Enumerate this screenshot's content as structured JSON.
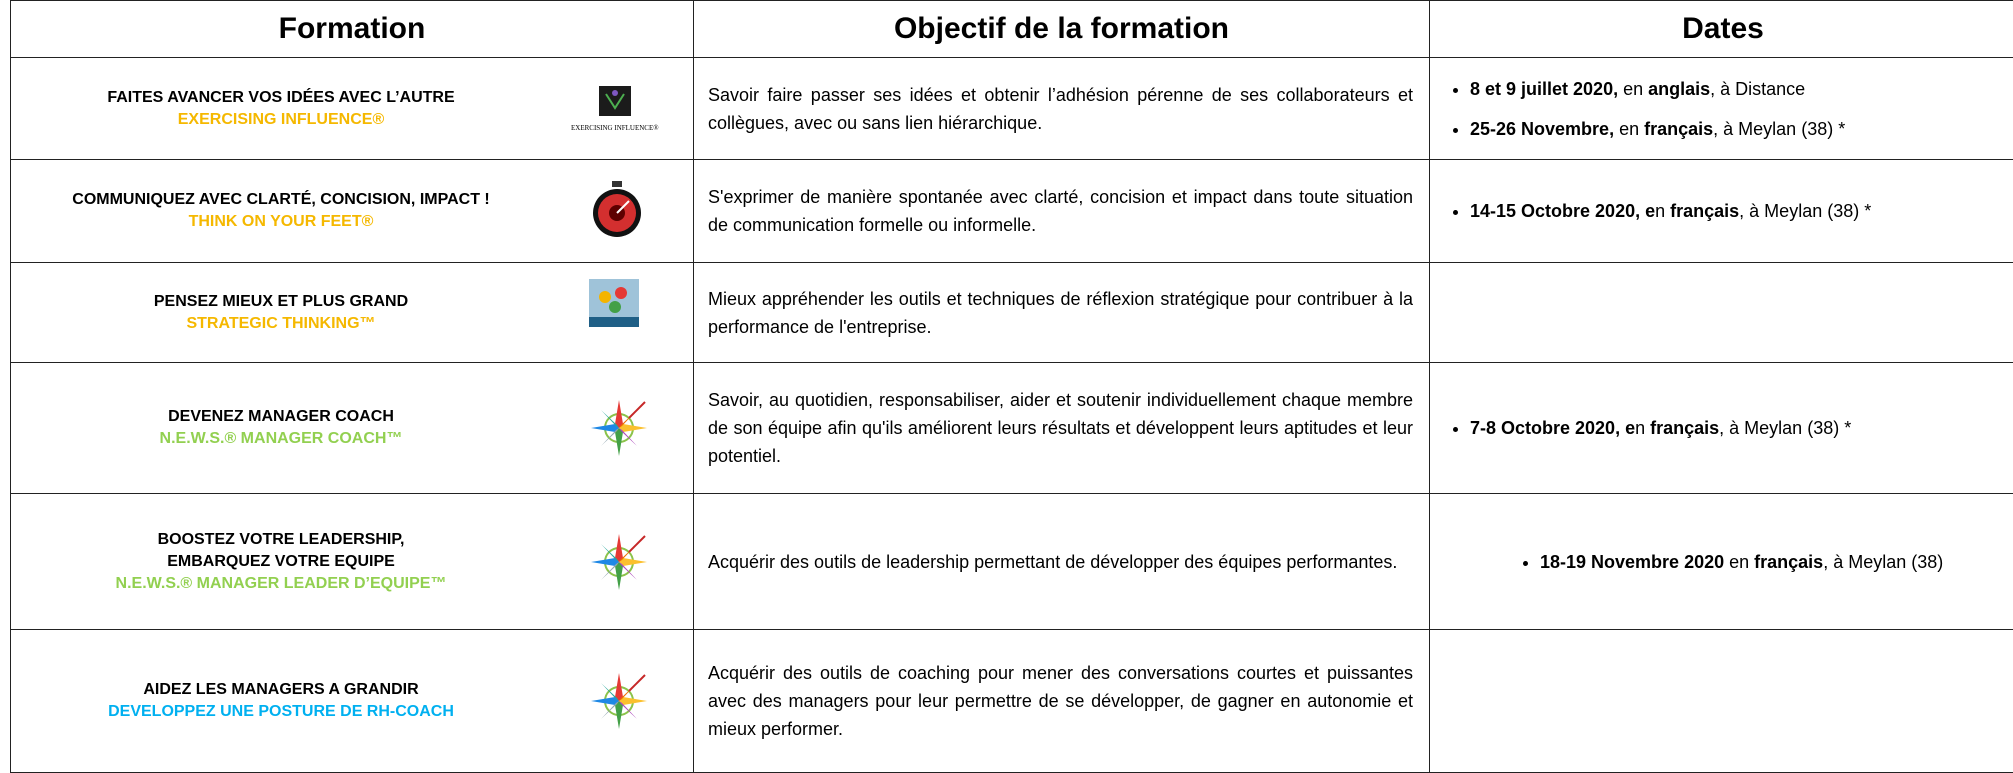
{
  "table": {
    "headers": [
      "Formation",
      "Objectif de la formation",
      "Dates"
    ],
    "rows": [
      {
        "title": [
          "FAITES AVANCER VOS IDÉES AVEC L’AUTRE"
        ],
        "subtitle": "EXERCISING INFLUENCE®",
        "subtitle_color": "#f5b800",
        "logo_text": "EXERCISING INFLUENCE®",
        "objective": "Savoir faire passer ses idées et obtenir l’adhésion pérenne de ses collaborateurs et collègues, avec ou sans lien hiérarchique.",
        "dates": [
          [
            {
              "text": "8 et 9 juillet 2020,",
              "bold": true
            },
            {
              "text": " en ",
              "bold": false
            },
            {
              "text": "anglais",
              "bold": true
            },
            {
              "text": ", à Distance",
              "bold": false
            }
          ],
          [
            {
              "text": "25-26 Novembre,",
              "bold": true
            },
            {
              "text": " en ",
              "bold": false
            },
            {
              "text": "français",
              "bold": true
            },
            {
              "text": ", à Meylan (38) *",
              "bold": false
            }
          ]
        ]
      },
      {
        "title": [
          "COMMUNIQUEZ AVEC CLARTÉ, CONCISION, IMPACT !"
        ],
        "subtitle": "THINK ON YOUR FEET®",
        "subtitle_color": "#f5b800",
        "objective": "S'exprimer de manière spontanée avec clarté, concision et impact dans toute situation de communication formelle ou informelle.",
        "dates": [
          [
            {
              "text": "14-15 Octobre 2020, e",
              "bold": true
            },
            {
              "text": "n ",
              "bold": false
            },
            {
              "text": "français",
              "bold": true
            },
            {
              "text": ", à Meylan (38) *",
              "bold": false
            }
          ]
        ]
      },
      {
        "title": [
          "PENSEZ MIEUX ET PLUS GRAND"
        ],
        "subtitle": "STRATEGIC THINKING™",
        "subtitle_color": "#f5b800",
        "objective": "Mieux appréhender les outils et techniques de réflexion stratégique pour contribuer à la performance de l'entreprise.",
        "dates": []
      },
      {
        "title": [
          "DEVENEZ MANAGER COACH"
        ],
        "subtitle": "N.E.W.S.® MANAGER COACH™",
        "subtitle_color": "#92d050",
        "objective": "Savoir, au quotidien, responsabiliser, aider et soutenir individuellement chaque membre de son équipe afin qu'ils améliorent leurs résultats et développent leurs aptitudes et leur potentiel.",
        "dates": [
          [
            {
              "text": "7-8 Octobre 2020, e",
              "bold": true
            },
            {
              "text": "n ",
              "bold": false
            },
            {
              "text": "français",
              "bold": true
            },
            {
              "text": ", à Meylan (38) *",
              "bold": false
            }
          ]
        ]
      },
      {
        "title": [
          "BOOSTEZ VOTRE LEADERSHIP,",
          "EMBARQUEZ VOTRE EQUIPE"
        ],
        "subtitle": "N.E.W.S.® MANAGER LEADER D’EQUIPE™",
        "subtitle_color": "#92d050",
        "objective": "Acquérir des outils de leadership permettant de développer des équipes performantes.",
        "dates": [
          [
            {
              "text": "18-19 Novembre 2020",
              "bold": true
            },
            {
              "text": " en ",
              "bold": false
            },
            {
              "text": "français",
              "bold": true
            },
            {
              "text": ", à Meylan (38)",
              "bold": false
            }
          ]
        ]
      },
      {
        "title": [
          "AIDEZ LES MANAGERS A GRANDIR"
        ],
        "subtitle": "DEVELOPPEZ UNE POSTURE DE RH-COACH",
        "subtitle_color": "#00b0f0",
        "objective": "Acquérir des outils de coaching pour mener des conversations courtes et puissantes avec des managers pour leur permettre de se développer, de gagner en autonomie et mieux performer.",
        "dates": []
      }
    ]
  }
}
